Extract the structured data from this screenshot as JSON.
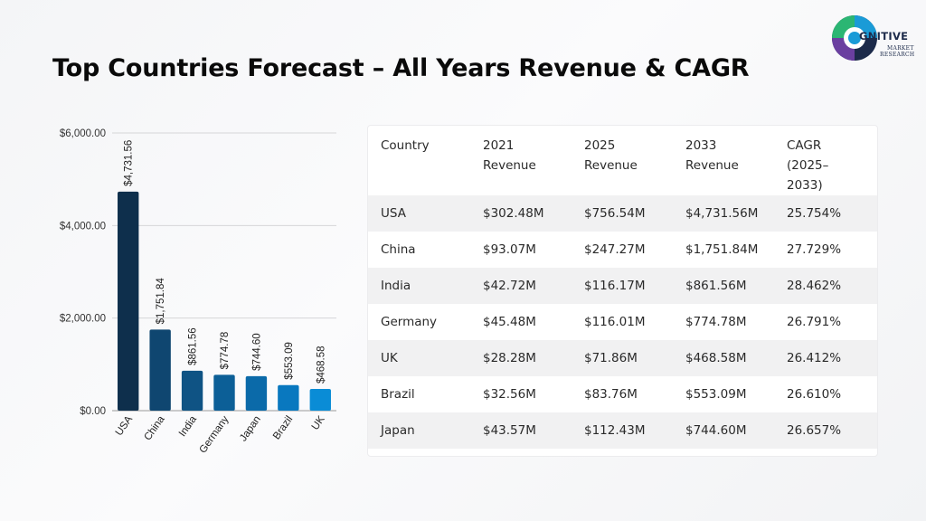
{
  "page": {
    "title": "Top Countries Forecast – All Years Revenue & CAGR"
  },
  "logo": {
    "line1": "GNITIVE",
    "line2": "MARKET",
    "line3": "RESEARCH",
    "colors": [
      "#1a9bd7",
      "#6a3fa0",
      "#2bb673",
      "#1c2a4a"
    ]
  },
  "chart_data": {
    "type": "bar",
    "title": "",
    "xlabel": "",
    "ylabel": "",
    "categories": [
      "USA",
      "China",
      "India",
      "Germany",
      "Japan",
      "Brazil",
      "UK"
    ],
    "values": [
      4731.56,
      1751.84,
      861.56,
      774.78,
      744.6,
      553.09,
      468.58
    ],
    "data_labels": [
      "$4,731.56",
      "$1,751.84",
      "$861.56",
      "$774.78",
      "$744.60",
      "$553.09",
      "$468.58"
    ],
    "y_ticks": [
      0,
      2000,
      4000,
      6000
    ],
    "y_tick_labels": [
      "$0.00",
      "$2,000.00",
      "$4,000.00",
      "$6,000.00"
    ],
    "ylim": [
      0,
      6000
    ],
    "grid": true,
    "legend": "none",
    "bar_colors": [
      "#0e2f4c",
      "#0f4670",
      "#0f5384",
      "#0c5f97",
      "#0b6aa9",
      "#0978bf",
      "#0a8cd6"
    ]
  },
  "table": {
    "headers": [
      [
        "Country"
      ],
      [
        "2021",
        "Revenue"
      ],
      [
        "2025",
        "Revenue"
      ],
      [
        "2033",
        "Revenue"
      ],
      [
        "CAGR",
        "(2025–",
        "2033)"
      ]
    ],
    "rows": [
      [
        "USA",
        "$302.48M",
        "$756.54M",
        "$4,731.56M",
        "25.754%"
      ],
      [
        "China",
        "$93.07M",
        "$247.27M",
        "$1,751.84M",
        "27.729%"
      ],
      [
        "India",
        "$42.72M",
        "$116.17M",
        "$861.56M",
        "28.462%"
      ],
      [
        "Germany",
        "$45.48M",
        "$116.01M",
        "$774.78M",
        "26.791%"
      ],
      [
        "UK",
        "$28.28M",
        "$71.86M",
        "$468.58M",
        "26.412%"
      ],
      [
        "Brazil",
        "$32.56M",
        "$83.76M",
        "$553.09M",
        "26.610%"
      ],
      [
        "Japan",
        "$43.57M",
        "$112.43M",
        "$744.60M",
        "26.657%"
      ]
    ]
  }
}
